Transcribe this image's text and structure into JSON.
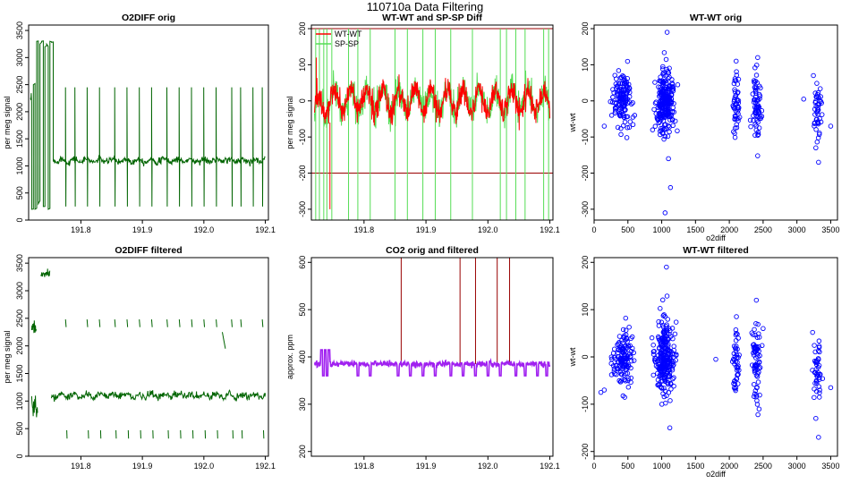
{
  "main_title": "110710a   Data Filtering",
  "colors": {
    "dark_green": "#006400",
    "red": "#ff0000",
    "light_green": "#55dd55",
    "dark_red": "#990000",
    "purple": "#a020f0",
    "blue": "#0000ff"
  },
  "chart_data": [
    {
      "id": "o2diff-orig",
      "type": "line",
      "title": "O2DIFF orig",
      "xlabel": "",
      "ylabel": "per meg signal",
      "xlim": [
        191.715,
        192.105
      ],
      "ylim": [
        0,
        3600
      ],
      "xticks": [
        "191.8",
        "191.9",
        "192.0",
        "192.1"
      ],
      "yticks": [
        "0",
        "500",
        "1000",
        "1500",
        "2000",
        "2500",
        "3000",
        "3500"
      ],
      "series": [
        {
          "name": "O2DIFF",
          "color": "#006400",
          "baseline": 1100,
          "noise": 30,
          "spike_x": [
            191.775,
            191.79,
            191.81,
            191.83,
            191.855,
            191.875,
            191.895,
            191.915,
            191.94,
            191.96,
            191.98,
            192.0,
            192.02,
            192.045,
            192.06,
            192.08,
            192.095
          ],
          "spike_high": 2450,
          "spike_low": 250,
          "early_segment": {
            "x_start": 191.72,
            "x_end": 191.755,
            "high": 3300,
            "low": 200
          }
        }
      ]
    },
    {
      "id": "wtwt-spsp-diff",
      "type": "line",
      "title": "WT-WT and SP-SP Diff",
      "xlabel": "",
      "ylabel": "per meg signal",
      "xlim": [
        191.715,
        192.105
      ],
      "ylim": [
        -330,
        210
      ],
      "xticks": [
        "191.8",
        "191.9",
        "192.0",
        "192.1"
      ],
      "yticks": [
        "-300",
        "-200",
        "-100",
        "0",
        "100",
        "200"
      ],
      "hlines": [
        200,
        -200
      ],
      "legend": [
        "WT-WT",
        "SP-SP"
      ],
      "series": [
        {
          "name": "WT-WT",
          "color": "#ff0000",
          "amplitude": 40,
          "noise": 18
        },
        {
          "name": "SP-SP",
          "color": "#55dd55",
          "amplitude": 40,
          "noise": 22,
          "spike_x": [
            191.722,
            191.728,
            191.735,
            191.74,
            191.748,
            191.775,
            191.79,
            191.81,
            191.85,
            191.87,
            191.895,
            191.915,
            191.94,
            191.975,
            192.02,
            192.03,
            192.045,
            192.06,
            192.09,
            192.098
          ]
        }
      ]
    },
    {
      "id": "wtwt-orig-scatter",
      "type": "scatter",
      "title": "WT-WT orig",
      "xlabel": "o2diff",
      "ylabel": "wt-wt",
      "xlim": [
        0,
        3600
      ],
      "ylim": [
        -330,
        210
      ],
      "xticks": [
        "0",
        "500",
        "1000",
        "1500",
        "2000",
        "2500",
        "3000",
        "3500"
      ],
      "yticks": [
        "-300",
        "-200",
        "-100",
        "0",
        "100",
        "200"
      ],
      "clusters": [
        {
          "x": 430,
          "y": 0,
          "sx": 70,
          "sy": 35,
          "n": 140
        },
        {
          "x": 1050,
          "y": 0,
          "sx": 70,
          "sy": 40,
          "n": 260
        },
        {
          "x": 2100,
          "y": -10,
          "sx": 25,
          "sy": 40,
          "n": 50
        },
        {
          "x": 2400,
          "y": -10,
          "sx": 30,
          "sy": 45,
          "n": 70
        },
        {
          "x": 3300,
          "y": -20,
          "sx": 30,
          "sy": 40,
          "n": 45
        }
      ],
      "outliers": [
        [
          1080,
          190
        ],
        [
          1050,
          -310
        ],
        [
          1130,
          -240
        ],
        [
          1100,
          -160
        ],
        [
          2420,
          120
        ],
        [
          3320,
          -170
        ],
        [
          3280,
          -130
        ],
        [
          3500,
          -70
        ],
        [
          3100,
          5
        ],
        [
          150,
          -70
        ],
        [
          260,
          -40
        ],
        [
          600,
          -40
        ]
      ],
      "marker_color": "#0000ff"
    },
    {
      "id": "o2diff-filtered",
      "type": "line",
      "title": "O2DIFF filtered",
      "xlabel": "",
      "ylabel": "per meg signal",
      "xlim": [
        191.715,
        192.105
      ],
      "ylim": [
        0,
        3600
      ],
      "xticks": [
        "191.8",
        "191.9",
        "192.0",
        "192.1"
      ],
      "yticks": [
        "0",
        "500",
        "1000",
        "1500",
        "2000",
        "2500",
        "3000",
        "3500"
      ],
      "series": [
        {
          "name": "O2DIFF filtered",
          "color": "#006400",
          "baseline": 1100,
          "noise": 30,
          "upper_level": 2400,
          "lower_level": 400,
          "fragment_x": [
            191.775,
            191.81,
            191.83,
            191.855,
            191.875,
            191.895,
            191.915,
            191.94,
            191.96,
            191.98,
            192.0,
            192.02,
            192.045,
            192.06,
            192.095
          ]
        }
      ]
    },
    {
      "id": "co2-orig-filtered",
      "type": "line",
      "title": "CO2 orig and filtered",
      "xlabel": "",
      "ylabel": "approx. ppm",
      "xlim": [
        191.715,
        192.105
      ],
      "ylim": [
        190,
        610
      ],
      "xticks": [
        "191.8",
        "191.9",
        "192.0",
        "192.1"
      ],
      "yticks": [
        "200",
        "300",
        "400",
        "500",
        "600"
      ],
      "series": [
        {
          "name": "CO2 orig",
          "color": "#990000",
          "baseline": 385,
          "spike_x": [
            191.86,
            191.955,
            191.98,
            192.015,
            192.035
          ],
          "spike_top": 610
        },
        {
          "name": "CO2 filtered",
          "color": "#a020f0",
          "baseline": 385,
          "early_level": 415,
          "dip_x": [
            191.79,
            191.81,
            191.855,
            191.875,
            191.895,
            191.915,
            191.94,
            191.96,
            191.98,
            192.0,
            192.02,
            192.045,
            192.06,
            192.08,
            192.095
          ]
        }
      ]
    },
    {
      "id": "wtwt-filtered-scatter",
      "type": "scatter",
      "title": "WT-WT filtered",
      "xlabel": "o2diff",
      "ylabel": "wt-wt",
      "xlim": [
        0,
        3600
      ],
      "ylim": [
        -210,
        210
      ],
      "xticks": [
        "0",
        "500",
        "1000",
        "1500",
        "2000",
        "2500",
        "3000",
        "3500"
      ],
      "yticks": [
        "-200",
        "-100",
        "0",
        "100",
        "200"
      ],
      "clusters": [
        {
          "x": 430,
          "y": 0,
          "sx": 70,
          "sy": 35,
          "n": 140
        },
        {
          "x": 1050,
          "y": 0,
          "sx": 70,
          "sy": 40,
          "n": 260
        },
        {
          "x": 2100,
          "y": -10,
          "sx": 25,
          "sy": 35,
          "n": 45
        },
        {
          "x": 2400,
          "y": -10,
          "sx": 30,
          "sy": 40,
          "n": 70
        },
        {
          "x": 3300,
          "y": -20,
          "sx": 30,
          "sy": 40,
          "n": 45
        }
      ],
      "outliers": [
        [
          1070,
          190
        ],
        [
          1120,
          -150
        ],
        [
          2400,
          120
        ],
        [
          3320,
          -170
        ],
        [
          3280,
          -130
        ],
        [
          3500,
          -65
        ],
        [
          100,
          -75
        ],
        [
          150,
          -70
        ],
        [
          1800,
          -5
        ],
        [
          2500,
          60
        ]
      ],
      "marker_color": "#0000ff"
    }
  ]
}
